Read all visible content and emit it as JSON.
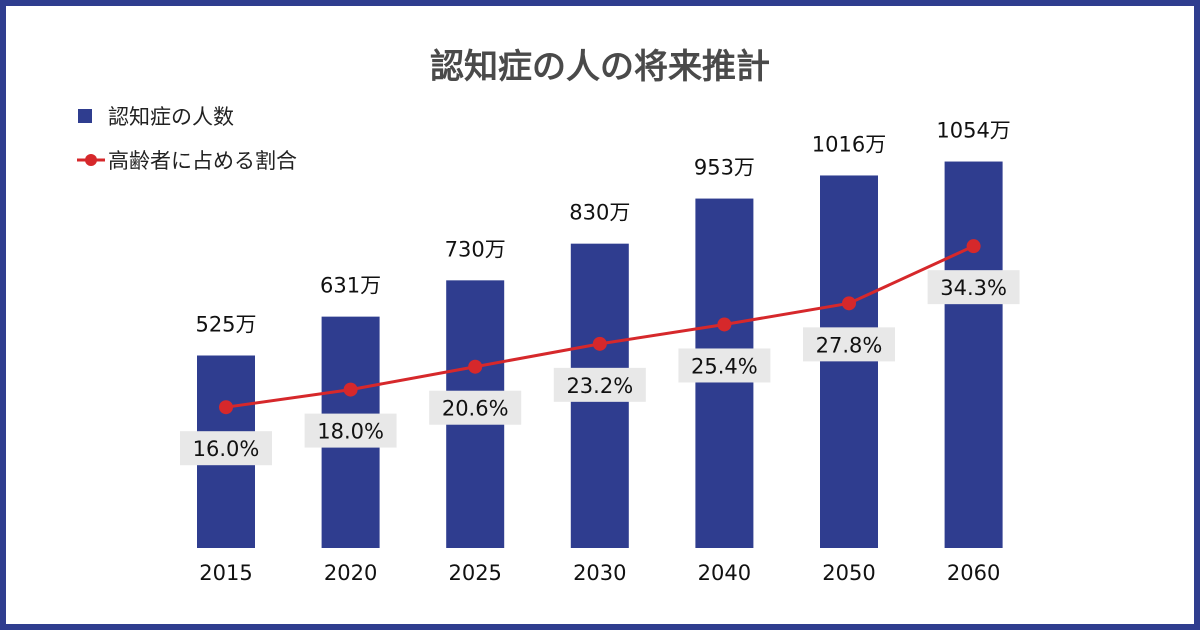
{
  "chart_data": {
    "type": "bar",
    "title": "認知症の人の将来推計",
    "categories": [
      "2015",
      "2020",
      "2025",
      "2030",
      "2040",
      "2050",
      "2060"
    ],
    "series": [
      {
        "name": "認知症の人数",
        "type": "bar",
        "values": [
          525,
          631,
          730,
          830,
          953,
          1016,
          1054
        ],
        "labels": [
          "525万",
          "631万",
          "730万",
          "830万",
          "953万",
          "1016万",
          "1054万"
        ]
      },
      {
        "name": "高齢者に占める割合",
        "type": "line",
        "values": [
          16.0,
          18.0,
          20.6,
          23.2,
          25.4,
          27.8,
          34.3
        ],
        "labels": [
          "16.0%",
          "18.0%",
          "20.6%",
          "23.2%",
          "25.4%",
          "27.8%",
          "34.3%"
        ]
      }
    ],
    "legend": {
      "bar": "認知症の人数",
      "line": "高齢者に占める割合"
    },
    "xlabel": "",
    "ylabel": "",
    "ylim": [
      0,
      1200
    ],
    "y2lim": [
      0,
      50
    ],
    "colors": {
      "bar": "#2f3d8f",
      "line": "#d6282b",
      "frame": "#2f3d8f",
      "label_bg": "#e8e8e8",
      "title": "#4a4a4a"
    },
    "legend_position": "top-left",
    "grid": false
  }
}
